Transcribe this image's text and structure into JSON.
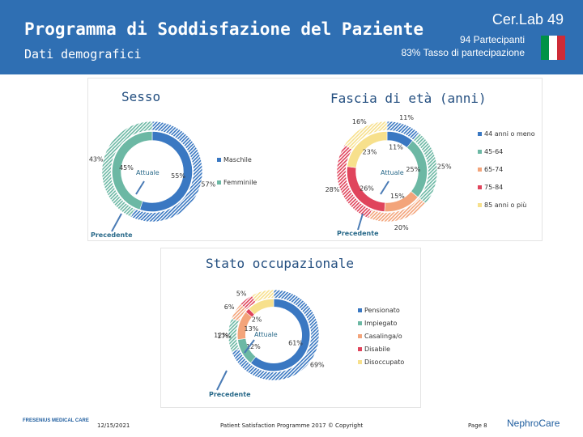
{
  "header": {
    "title": "Programma di Soddisfazione del Paziente",
    "subtitle": "Dati demografici",
    "brand": "Cer.Lab 49",
    "participants": "94 Partecipanti",
    "participation": "83% Tasso di partecipazione",
    "flag_colors": [
      "#009246",
      "#ffffff",
      "#ce2b37"
    ]
  },
  "chart_data": [
    {
      "type": "pie",
      "title": "Sesso",
      "inner_label": "Attuale",
      "outer_label": "Precedente",
      "categories": [
        "Maschile",
        "Femminile"
      ],
      "colors": [
        "#3a78c2",
        "#6cb8a4"
      ],
      "series": [
        {
          "name": "Attuale",
          "values": [
            55,
            45
          ],
          "labels": [
            "55%",
            "45%"
          ]
        },
        {
          "name": "Precedente",
          "values": [
            57,
            43
          ],
          "labels": [
            "57%",
            "43%"
          ]
        }
      ],
      "legend_position": "right"
    },
    {
      "type": "pie",
      "title": "Fascia di età (anni)",
      "inner_label": "Attuale",
      "outer_label": "Precedente",
      "categories": [
        "44 anni o meno",
        "45-64",
        "65-74",
        "75-84",
        "85 anni o più"
      ],
      "colors": [
        "#3a78c2",
        "#6cb8a4",
        "#f3a47a",
        "#e0445c",
        "#f7e08c"
      ],
      "series": [
        {
          "name": "Attuale",
          "values": [
            11,
            25,
            15,
            26,
            23
          ],
          "labels": [
            "11%",
            "25%",
            "15%",
            "26%",
            "23%"
          ]
        },
        {
          "name": "Precedente",
          "values": [
            11,
            25,
            20,
            28,
            16
          ],
          "labels": [
            "11%",
            "25%",
            "20%",
            "28%",
            "16%"
          ]
        }
      ],
      "legend_position": "right"
    },
    {
      "type": "pie",
      "title": "Stato occupazionale",
      "inner_label": "Attuale",
      "outer_label": "Precedente",
      "categories": [
        "Pensionato",
        "Impiegato",
        "Casalinga/o",
        "Disabile",
        "Disoccupato"
      ],
      "colors": [
        "#3a78c2",
        "#6cb8a4",
        "#f3a47a",
        "#e0445c",
        "#f7e08c"
      ],
      "series": [
        {
          "name": "Attuale",
          "values": [
            61,
            12,
            13,
            2,
            12
          ],
          "labels": [
            "61%",
            "12%",
            "13%",
            "2%",
            ""
          ]
        },
        {
          "name": "Precedente",
          "values": [
            69,
            12,
            6,
            5,
            8
          ],
          "labels": [
            "69%",
            "12%",
            "6%",
            "5%",
            ""
          ]
        }
      ],
      "extra_labels": [
        "17%"
      ],
      "legend_position": "right"
    }
  ],
  "footer": {
    "company": "FRESENIUS MEDICAL CARE",
    "date": "12/15/2021",
    "copyright": "Patient Satisfaction Programme 2017 © Copyright",
    "page": "Page 8",
    "brand": "NephroCare"
  }
}
